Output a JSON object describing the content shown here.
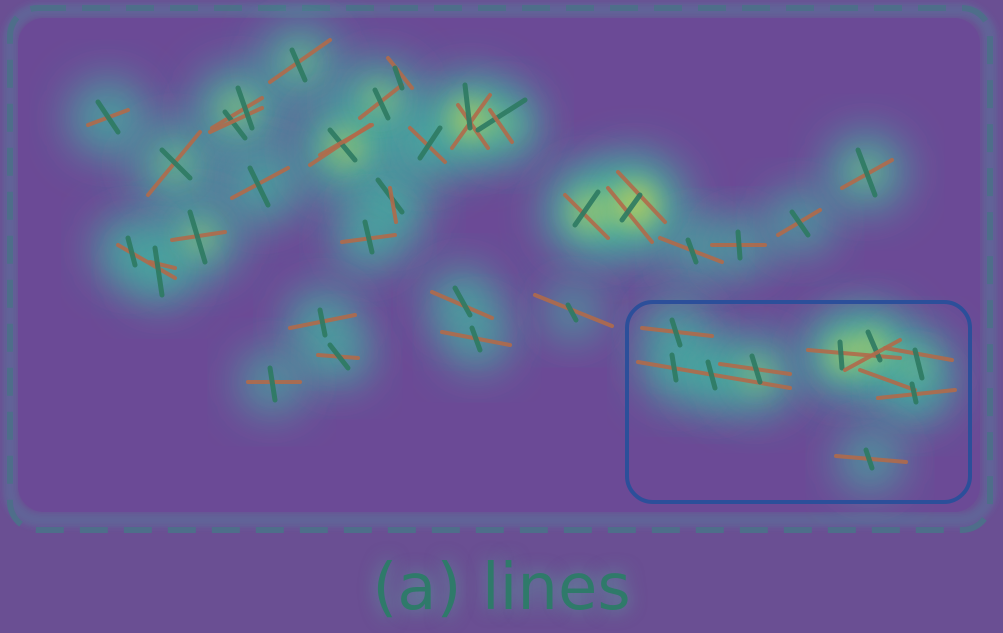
{
  "figure": {
    "caption": "(a) lines"
  },
  "colors": {
    "background": "#6a4f93",
    "heat_low": "#3fb8a0",
    "heat_high": "#d9d24a",
    "segment_a": "#b06a4a",
    "segment_b": "#2e7a62",
    "region_border": "#2c4f9a",
    "outer_dashes": "#4e6e8a"
  }
}
